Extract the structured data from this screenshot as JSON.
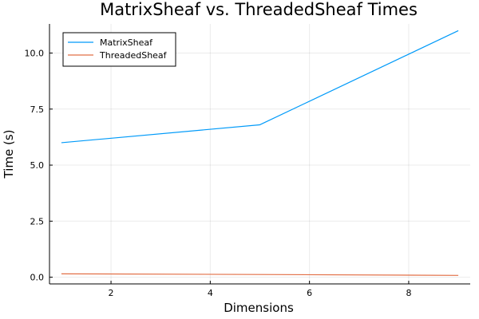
{
  "chart_data": {
    "type": "line",
    "title": "MatrixSheaf vs. ThreadedSheaf Times",
    "xlabel": "Dimensions",
    "ylabel": "Time (s)",
    "xlim": [
      0.76,
      9.24
    ],
    "ylim": [
      -0.3,
      11.3
    ],
    "xticks": [
      2,
      4,
      6,
      8
    ],
    "xtick_labels": [
      "2",
      "4",
      "6",
      "8"
    ],
    "yticks": [
      0,
      2.5,
      5,
      7.5,
      10
    ],
    "ytick_labels": [
      "0.0",
      "2.5",
      "5.0",
      "7.5",
      "10.0"
    ],
    "grid": true,
    "legend_position": "top-left",
    "series": [
      {
        "name": "MatrixSheaf",
        "color": "#009af9",
        "x": [
          1,
          5,
          9
        ],
        "y": [
          6.0,
          6.8,
          11.0
        ]
      },
      {
        "name": "ThreadedSheaf",
        "color": "#e26f46",
        "x": [
          1,
          5,
          9
        ],
        "y": [
          0.15,
          0.12,
          0.08
        ]
      }
    ]
  }
}
